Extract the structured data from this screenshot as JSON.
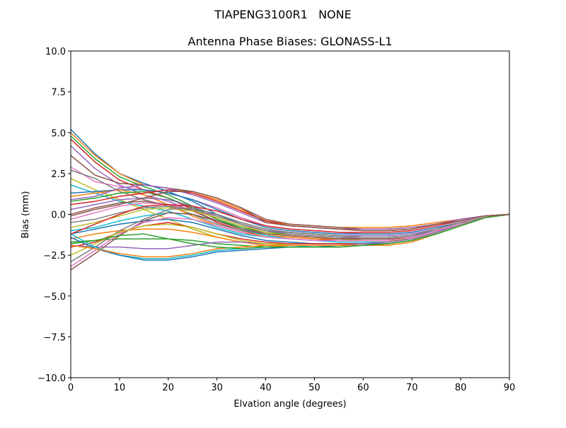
{
  "chart_data": {
    "type": "line",
    "suptitle": "TIAPENG3100R1   NONE",
    "title": "Antenna Phase Biases: GLONASS-L1",
    "xlabel": "Elvation angle (degrees)",
    "ylabel": "Bias (mm)",
    "xlim": [
      0,
      90
    ],
    "ylim": [
      -10,
      10
    ],
    "xticks": [
      0,
      10,
      20,
      30,
      40,
      50,
      60,
      70,
      80,
      90
    ],
    "xtick_labels": [
      "0",
      "10",
      "20",
      "30",
      "40",
      "50",
      "60",
      "70",
      "80",
      "90"
    ],
    "yticks": [
      -10,
      -7.5,
      -5,
      -2.5,
      0,
      2.5,
      5,
      7.5,
      10
    ],
    "ytick_labels": [
      "−10.0",
      "−7.5",
      "−5.0",
      "−2.5",
      "0.0",
      "2.5",
      "5.0",
      "7.5",
      "10.0"
    ],
    "grid": false,
    "colors": [
      "#1f77b4",
      "#ff7f0e",
      "#2ca02c",
      "#d62728",
      "#9467bd",
      "#8c564b",
      "#e377c2",
      "#7f7f7f",
      "#bcbd22",
      "#17becf"
    ],
    "x": [
      0,
      5,
      10,
      15,
      20,
      25,
      30,
      35,
      40,
      45,
      50,
      55,
      60,
      65,
      70,
      75,
      80,
      85,
      90
    ],
    "series": [
      [
        5.2,
        3.7,
        2.5,
        1.9,
        1.4,
        0.8,
        0.0,
        -0.6,
        -1.0,
        -1.1,
        -1.2,
        -1.3,
        -1.4,
        -1.4,
        -1.3,
        -1.0,
        -0.6,
        -0.2,
        0
      ],
      [
        5.0,
        3.6,
        2.5,
        1.8,
        1.6,
        1.3,
        0.9,
        0.3,
        -0.4,
        -0.6,
        -0.7,
        -0.8,
        -0.8,
        -0.8,
        -0.7,
        -0.5,
        -0.3,
        -0.1,
        0
      ],
      [
        4.8,
        3.4,
        2.3,
        1.7,
        1.2,
        0.5,
        -0.3,
        -0.9,
        -1.2,
        -1.3,
        -1.4,
        -1.5,
        -1.5,
        -1.5,
        -1.4,
        -1.0,
        -0.6,
        -0.2,
        0
      ],
      [
        4.6,
        3.2,
        2.1,
        1.5,
        1.0,
        0.3,
        -0.5,
        -1.0,
        -1.3,
        -1.4,
        -1.5,
        -1.6,
        -1.6,
        -1.6,
        -1.5,
        -1.1,
        -0.6,
        -0.2,
        0
      ],
      [
        4.2,
        2.8,
        1.8,
        1.2,
        0.8,
        0.2,
        -0.4,
        -0.9,
        -1.1,
        -1.2,
        -1.3,
        -1.4,
        -1.5,
        -1.5,
        -1.4,
        -1.0,
        -0.6,
        -0.2,
        0
      ],
      [
        3.6,
        2.4,
        1.9,
        1.8,
        1.6,
        1.4,
        1.0,
        0.4,
        -0.3,
        -0.6,
        -0.7,
        -0.8,
        -0.9,
        -0.9,
        -0.8,
        -0.6,
        -0.3,
        -0.1,
        0
      ],
      [
        2.9,
        2.0,
        1.7,
        1.5,
        1.3,
        0.9,
        0.4,
        -0.2,
        -0.7,
        -0.9,
        -1.0,
        -1.1,
        -1.2,
        -1.2,
        -1.1,
        -0.8,
        -0.5,
        -0.2,
        0
      ],
      [
        2.7,
        2.2,
        1.4,
        0.9,
        0.5,
        0.0,
        -0.6,
        -1.0,
        -1.2,
        -1.3,
        -1.4,
        -1.5,
        -1.5,
        -1.5,
        -1.4,
        -1.0,
        -0.6,
        -0.2,
        0
      ],
      [
        2.2,
        1.5,
        0.9,
        0.3,
        -0.3,
        -0.9,
        -1.4,
        -1.7,
        -1.8,
        -1.8,
        -1.8,
        -1.8,
        -1.8,
        -1.7,
        -1.5,
        -1.1,
        -0.6,
        -0.2,
        0
      ],
      [
        1.8,
        1.3,
        0.8,
        0.5,
        0.2,
        -0.3,
        -0.8,
        -1.2,
        -1.4,
        -1.5,
        -1.6,
        -1.6,
        -1.6,
        -1.6,
        -1.4,
        -1.0,
        -0.6,
        -0.2,
        0
      ],
      [
        1.3,
        1.4,
        1.5,
        1.5,
        1.3,
        0.9,
        0.3,
        -0.3,
        -0.8,
        -1.0,
        -1.1,
        -1.2,
        -1.2,
        -1.2,
        -1.1,
        -0.8,
        -0.5,
        -0.2,
        0
      ],
      [
        1.1,
        1.3,
        1.5,
        1.2,
        0.6,
        -0.1,
        -0.7,
        -1.1,
        -1.3,
        -1.4,
        -1.5,
        -1.5,
        -1.6,
        -1.6,
        -1.4,
        -1.0,
        -0.6,
        -0.2,
        0
      ],
      [
        0.8,
        1.0,
        1.3,
        1.4,
        1.0,
        0.4,
        -0.3,
        -0.8,
        -1.1,
        -1.2,
        -1.3,
        -1.4,
        -1.4,
        -1.4,
        -1.3,
        -0.9,
        -0.5,
        -0.2,
        0
      ],
      [
        0.6,
        0.8,
        1.1,
        1.3,
        1.5,
        1.3,
        0.8,
        0.2,
        -0.4,
        -0.7,
        -0.8,
        -0.9,
        -1.0,
        -1.0,
        -0.9,
        -0.6,
        -0.4,
        -0.1,
        0
      ],
      [
        0.3,
        0.6,
        0.9,
        1.0,
        0.9,
        0.5,
        -0.1,
        -0.6,
        -1.0,
        -1.1,
        -1.2,
        -1.3,
        -1.3,
        -1.3,
        -1.2,
        -0.9,
        -0.5,
        -0.2,
        0
      ],
      [
        0.0,
        0.4,
        0.7,
        0.8,
        0.6,
        0.2,
        -0.4,
        -0.9,
        -1.2,
        -1.3,
        -1.4,
        -1.5,
        -1.5,
        -1.5,
        -1.4,
        -1.0,
        -0.6,
        -0.2,
        0
      ],
      [
        -0.3,
        0.1,
        0.5,
        0.7,
        0.6,
        0.3,
        -0.2,
        -0.7,
        -1.0,
        -1.2,
        -1.3,
        -1.4,
        -1.4,
        -1.4,
        -1.3,
        -0.9,
        -0.5,
        -0.2,
        0
      ],
      [
        -0.5,
        -0.3,
        0.1,
        0.4,
        0.5,
        0.3,
        -0.1,
        -0.6,
        -1.0,
        -1.2,
        -1.3,
        -1.4,
        -1.5,
        -1.5,
        -1.4,
        -1.0,
        -0.6,
        -0.2,
        0
      ],
      [
        -0.8,
        -0.5,
        -0.1,
        0.3,
        0.4,
        0.2,
        -0.2,
        -0.7,
        -1.1,
        -1.3,
        -1.4,
        -1.5,
        -1.6,
        -1.6,
        -1.5,
        -1.1,
        -0.6,
        -0.2,
        0
      ],
      [
        -1.0,
        -0.8,
        -0.4,
        -0.1,
        0.1,
        0.0,
        -0.4,
        -0.9,
        -1.3,
        -1.5,
        -1.6,
        -1.7,
        -1.7,
        -1.7,
        -1.5,
        -1.1,
        -0.6,
        -0.2,
        0
      ],
      [
        -1.2,
        -0.9,
        -0.6,
        -0.4,
        -0.3,
        -0.5,
        -0.9,
        -1.3,
        -1.6,
        -1.7,
        -1.8,
        -1.8,
        -1.8,
        -1.8,
        -1.6,
        -1.2,
        -0.7,
        -0.2,
        0
      ],
      [
        -1.5,
        -1.2,
        -1.0,
        -0.9,
        -0.9,
        -1.1,
        -1.4,
        -1.7,
        -1.9,
        -2.0,
        -2.0,
        -2.0,
        -1.9,
        -1.9,
        -1.7,
        -1.2,
        -0.7,
        -0.2,
        0
      ],
      [
        -1.7,
        -1.6,
        -1.5,
        -1.5,
        -1.5,
        -1.6,
        -1.8,
        -1.9,
        -2.0,
        -2.0,
        -2.0,
        -2.0,
        -1.9,
        -1.8,
        -1.6,
        -1.2,
        -0.7,
        -0.2,
        0
      ],
      [
        -2.0,
        -1.7,
        -1.1,
        -0.7,
        -0.5,
        -0.8,
        -1.2,
        -1.5,
        -1.7,
        -1.8,
        -1.8,
        -1.8,
        -1.8,
        -1.7,
        -1.5,
        -1.1,
        -0.6,
        -0.2,
        0
      ],
      [
        -1.9,
        -2.0,
        -2.0,
        -2.1,
        -2.1,
        -1.9,
        -1.7,
        -1.7,
        -1.8,
        -1.9,
        -1.9,
        -1.9,
        -1.8,
        -1.7,
        -1.5,
        -1.1,
        -0.6,
        -0.2,
        0
      ],
      [
        -3.4,
        -2.4,
        -1.3,
        -0.4,
        0.1,
        0.0,
        -0.4,
        -0.9,
        -1.2,
        -1.3,
        -1.4,
        -1.5,
        -1.5,
        -1.5,
        -1.4,
        -1.0,
        -0.6,
        -0.2,
        0
      ],
      [
        -3.2,
        -2.2,
        -1.2,
        -0.5,
        -0.2,
        -0.3,
        -0.7,
        -1.1,
        -1.4,
        -1.5,
        -1.6,
        -1.6,
        -1.6,
        -1.6,
        -1.4,
        -1.0,
        -0.6,
        -0.2,
        0
      ],
      [
        -2.9,
        -2.0,
        -1.0,
        -0.3,
        0.3,
        0.4,
        0.0,
        -0.5,
        -0.9,
        -1.1,
        -1.2,
        -1.3,
        -1.4,
        -1.4,
        -1.3,
        -0.9,
        -0.5,
        -0.2,
        0
      ],
      [
        -2.5,
        -1.8,
        -1.1,
        -0.7,
        -0.6,
        -0.8,
        -1.2,
        -1.6,
        -1.8,
        -1.9,
        -1.9,
        -1.9,
        -1.9,
        -1.8,
        -1.6,
        -1.2,
        -0.7,
        -0.2,
        0
      ],
      [
        -1.2,
        -2.0,
        -2.5,
        -2.7,
        -2.7,
        -2.5,
        -2.2,
        -2.1,
        -2.0,
        -2.0,
        -1.9,
        -1.9,
        -1.9,
        -1.8,
        -1.6,
        -1.2,
        -0.7,
        -0.2,
        0
      ],
      [
        -1.4,
        -2.1,
        -2.5,
        -2.8,
        -2.8,
        -2.6,
        -2.3,
        -2.2,
        -2.1,
        -2.0,
        -2.0,
        -1.9,
        -1.9,
        -1.8,
        -1.6,
        -1.2,
        -0.7,
        -0.2,
        0
      ],
      [
        -1.9,
        -2.1,
        -2.4,
        -2.6,
        -2.6,
        -2.4,
        -2.1,
        -2.0,
        -1.9,
        -1.9,
        -1.9,
        -1.9,
        -1.9,
        -1.8,
        -1.6,
        -1.2,
        -0.7,
        -0.2,
        0
      ],
      [
        -1.8,
        -1.6,
        -1.3,
        -1.2,
        -1.5,
        -1.8,
        -2.0,
        -2.1,
        -2.0,
        -2.0,
        -2.0,
        -2.0,
        -1.9,
        -1.8,
        -1.6,
        -1.2,
        -0.7,
        -0.2,
        0
      ],
      [
        -1.2,
        -0.6,
        0.0,
        0.5,
        0.6,
        0.5,
        0.2,
        -0.3,
        -0.7,
        -0.9,
        -1.0,
        -1.1,
        -1.1,
        -1.1,
        -1.0,
        -0.7,
        -0.4,
        -0.1,
        0
      ],
      [
        0.9,
        1.1,
        1.6,
        1.8,
        1.6,
        1.2,
        0.7,
        0.1,
        -0.5,
        -0.7,
        -0.8,
        -0.9,
        -0.9,
        -0.9,
        -0.8,
        -0.6,
        -0.3,
        -0.1,
        0
      ],
      [
        -0.1,
        0.3,
        0.6,
        1.0,
        1.4,
        1.4,
        1.0,
        0.4,
        -0.5,
        -0.7,
        -0.8,
        -0.9,
        -1.0,
        -1.0,
        -0.9,
        -0.6,
        -0.4,
        -0.1,
        0
      ]
    ]
  }
}
